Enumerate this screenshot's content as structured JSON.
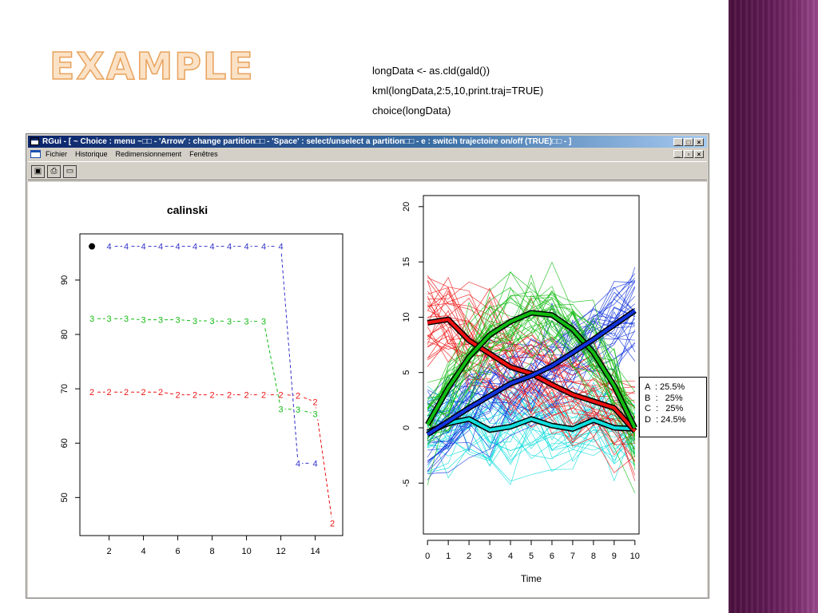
{
  "slide": {
    "title": "EXAMPLE",
    "code": [
      "longData <- as.cld(gald())",
      "kml(longData,2:5,10,print.traj=TRUE)",
      "choice(longData)"
    ]
  },
  "window": {
    "title": "RGui - [    ~ Choice : menu ~□□ - 'Arrow' : change partition□□ - 'Space' : select/unselect a partition□□ -   e   : switch trajectoire on/off (TRUE)□□ -   ]",
    "menu": [
      "Fichier",
      "Historique",
      "Redimensionnement",
      "Fenêtres"
    ],
    "title_buttons": [
      "_",
      "□",
      "×"
    ],
    "doc_buttons": [
      "_",
      "▫",
      "×"
    ],
    "tools": [
      {
        "icon": "camera-icon",
        "glyph": "▣"
      },
      {
        "icon": "printer-icon",
        "glyph": "⎙"
      },
      {
        "icon": "window-icon",
        "glyph": "▭"
      }
    ]
  },
  "colors": {
    "A": "#ee1111",
    "B": "#11bb11",
    "C": "#1133dd",
    "D": "#11dddd",
    "series4": "#3333cc"
  },
  "legend": [
    "A  : 25.5%",
    "B  :   25%",
    "C  :   25%",
    "D  : 24.5%"
  ],
  "chart_data": [
    {
      "type": "line",
      "title": "calinski",
      "xlabel": "",
      "ylabel": "",
      "xlim": [
        0.3,
        15.6
      ],
      "ylim": [
        43,
        98.5
      ],
      "xticks": [
        2,
        4,
        6,
        8,
        10,
        12,
        14
      ],
      "yticks": [
        50,
        60,
        70,
        80,
        90
      ],
      "marker_point": {
        "x": 1,
        "y": 96.2
      },
      "series": [
        {
          "marker": "2",
          "color": "#ee1111",
          "x": [
            1,
            2,
            3,
            4,
            5,
            6,
            7,
            8,
            9,
            10,
            11,
            12,
            13,
            14,
            15
          ],
          "values": [
            69.4,
            69.4,
            69.4,
            69.4,
            69.4,
            68.9,
            68.9,
            68.9,
            68.9,
            68.9,
            68.9,
            68.9,
            68.8,
            67.6,
            45.3
          ]
        },
        {
          "marker": "3",
          "color": "#11bb11",
          "x": [
            1,
            2,
            3,
            4,
            5,
            6,
            7,
            8,
            9,
            10,
            11,
            12,
            13,
            14
          ],
          "values": [
            82.9,
            82.9,
            82.9,
            82.7,
            82.7,
            82.7,
            82.5,
            82.5,
            82.4,
            82.4,
            82.4,
            66.3,
            66.2,
            65.4
          ]
        },
        {
          "marker": "4",
          "color": "#3333cc",
          "x": [
            2,
            3,
            4,
            5,
            6,
            7,
            8,
            9,
            10,
            11,
            12,
            13,
            14
          ],
          "values": [
            96.2,
            96.2,
            96.2,
            96.2,
            96.2,
            96.2,
            96.2,
            96.2,
            96.2,
            96.2,
            96.2,
            56.3,
            56.3
          ]
        }
      ]
    },
    {
      "type": "line",
      "title": "",
      "xlabel": "Time",
      "ylabel": "",
      "xlim": [
        -0.2,
        10.2
      ],
      "ylim": [
        -9.6,
        21
      ],
      "xticks": [
        0,
        1,
        2,
        3,
        4,
        5,
        6,
        7,
        8,
        9,
        10
      ],
      "yticks": [
        -5,
        0,
        5,
        10,
        15,
        20
      ],
      "x": [
        0,
        1,
        2,
        3,
        4,
        5,
        6,
        7,
        8,
        9,
        10
      ],
      "series": [
        {
          "name": "A",
          "color": "#ee1111",
          "values": [
            9.5,
            9.8,
            7.9,
            6.7,
            5.5,
            4.9,
            3.9,
            3.0,
            2.4,
            1.8,
            -0.3
          ]
        },
        {
          "name": "B",
          "color": "#11bb11",
          "values": [
            0.3,
            3.6,
            6.4,
            8.4,
            9.6,
            10.4,
            10.2,
            8.9,
            6.8,
            3.8,
            0.0
          ]
        },
        {
          "name": "C",
          "color": "#1133dd",
          "values": [
            -0.6,
            0.6,
            1.8,
            2.9,
            4.0,
            4.7,
            5.6,
            6.8,
            8.0,
            9.3,
            10.6
          ]
        },
        {
          "name": "D",
          "color": "#11dddd",
          "values": [
            -0.4,
            0.4,
            0.8,
            -0.2,
            0.1,
            0.8,
            0.2,
            -0.1,
            0.7,
            0.0,
            -0.1
          ]
        }
      ]
    }
  ]
}
